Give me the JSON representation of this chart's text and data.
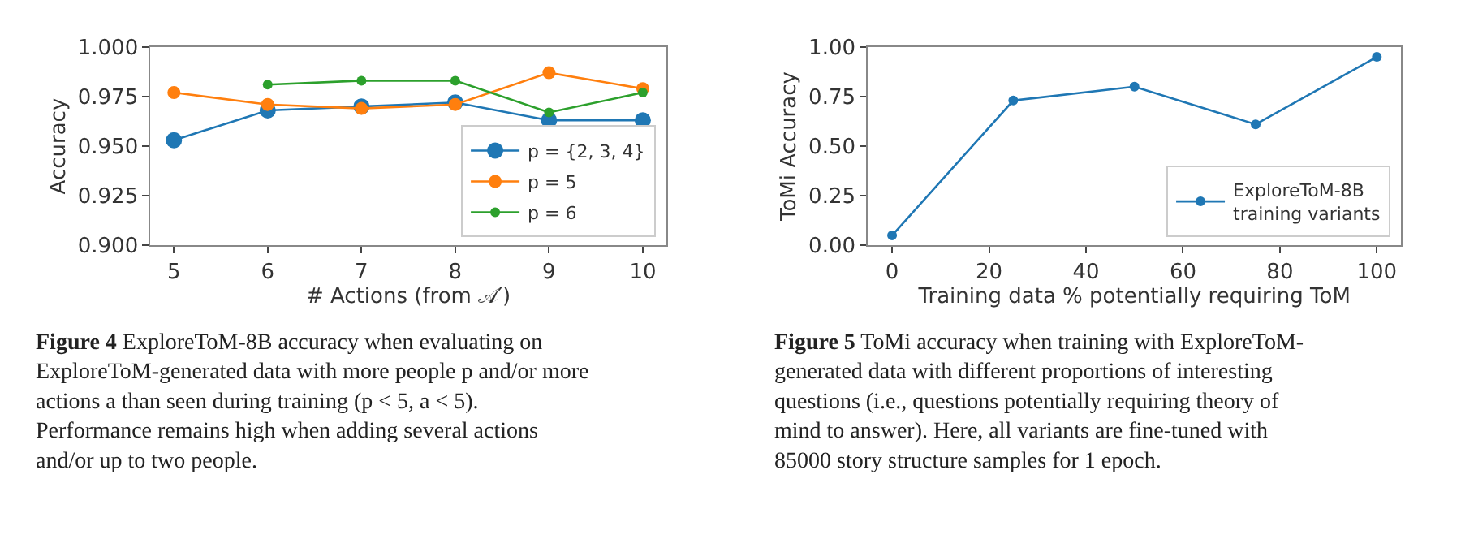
{
  "chart_data": [
    {
      "type": "line",
      "xlabel": "# Actions (from 𝒜′)",
      "ylabel": "Accuracy",
      "x": [
        5,
        6,
        7,
        8,
        9,
        10
      ],
      "xlim": [
        4.75,
        10.25
      ],
      "xticks": [
        5,
        6,
        7,
        8,
        9,
        10
      ],
      "ylim": [
        0.9,
        1.0
      ],
      "yticks": [
        {
          "value": 0.9,
          "label": "0.900"
        },
        {
          "value": 0.925,
          "label": "0.925"
        },
        {
          "value": 0.95,
          "label": "0.950"
        },
        {
          "value": 0.975,
          "label": "0.975"
        },
        {
          "value": 1.0,
          "label": "1.000"
        }
      ],
      "marker": "circle",
      "line_style": "solid",
      "legend": "bottom right",
      "series": [
        {
          "name": "p = {2, 3, 4}",
          "color": "#1f77b4",
          "values": [
            0.953,
            0.968,
            0.97,
            0.972,
            0.963,
            0.963
          ]
        },
        {
          "name": "p = 5",
          "color": "#ff7f0e",
          "values": [
            0.977,
            0.971,
            0.969,
            0.971,
            0.987,
            0.979
          ]
        },
        {
          "name": "p = 6",
          "color": "#2ca02c",
          "values": [
            null,
            0.981,
            0.983,
            0.983,
            0.967,
            0.977
          ]
        }
      ],
      "annotations": [
        "Figure 4 ExploreToM-8B accuracy when evaluating on ExploreToM-generated data with more people p and/or more actions a than seen during training (p < 5, a < 5). Performance remains high when adding several actions and/or up to two people."
      ]
    },
    {
      "type": "line",
      "xlabel": "Training data % potentially requiring ToM",
      "ylabel": "ToMi Accuracy",
      "x": [
        0,
        25,
        50,
        75,
        100
      ],
      "xlim": [
        -5,
        105
      ],
      "xticks": [
        0,
        20,
        40,
        60,
        80,
        100
      ],
      "ylim": [
        0,
        1
      ],
      "yticks": [
        {
          "value": 0,
          "label": "0.00"
        },
        {
          "value": 0.25,
          "label": "0.25"
        },
        {
          "value": 0.5,
          "label": "0.50"
        },
        {
          "value": 0.75,
          "label": "0.75"
        },
        {
          "value": 1,
          "label": "1.00"
        }
      ],
      "marker": "circle",
      "line_style": "solid",
      "legend": "bottom right",
      "series": [
        {
          "name": "ExploreToM-8B training variants",
          "color": "#1f77b4",
          "values": [
            0.05,
            0.73,
            0.8,
            0.61,
            0.95
          ]
        }
      ],
      "annotations": [
        "Figure 5 ToMi accuracy when training with ExploreToM-generated data with different proportions of interesting questions (i.e., questions potentially requiring theory of mind to answer). Here, all variants are fine-tuned with 85000 story structure samples for 1 epoch."
      ]
    }
  ]
}
